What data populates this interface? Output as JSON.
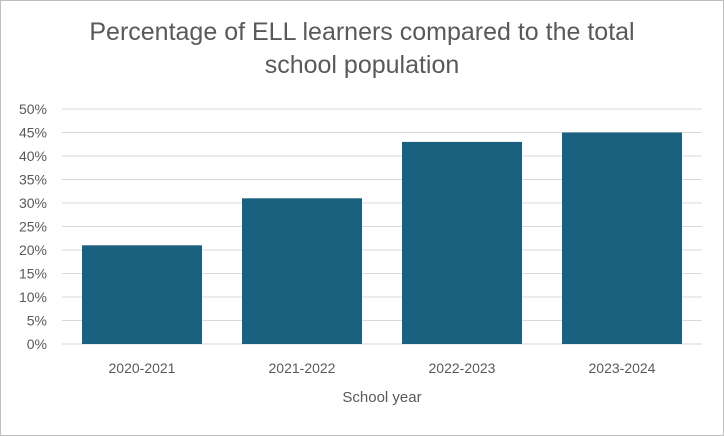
{
  "chart_data": {
    "type": "bar",
    "title": "Percentage of ELL learners compared to the total school population",
    "xlabel": "School year",
    "ylabel": "",
    "categories": [
      "2020-2021",
      "2021-2022",
      "2022-2023",
      "2023-2024"
    ],
    "values": [
      21,
      31,
      43,
      45
    ],
    "ylim": [
      0,
      50
    ],
    "yticks": [
      "0%",
      "5%",
      "10%",
      "15%",
      "20%",
      "25%",
      "30%",
      "35%",
      "40%",
      "45%",
      "50%"
    ],
    "grid": true,
    "legend": "none",
    "bar_color": "#1a6180"
  }
}
